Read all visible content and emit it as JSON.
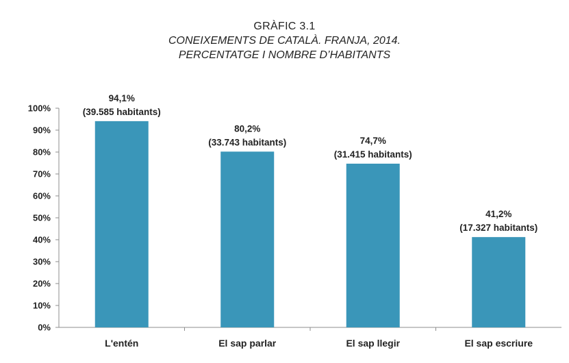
{
  "chart_data": {
    "type": "bar",
    "title": "GRÀFIC 3.1",
    "subtitle_lines": [
      "CONEIXEMENTS DE CATALÀ. FRANJA, 2014.",
      "PERCENTATGE I NOMBRE D’HABITANTS"
    ],
    "categories": [
      "L'entén",
      "El sap parlar",
      "El sap llegir",
      "El sap escriure"
    ],
    "values": [
      94.1,
      80.2,
      74.7,
      41.2
    ],
    "value_labels": [
      "94,1%",
      "80,2%",
      "74,7%",
      "41,2%"
    ],
    "count_labels": [
      "(39.585 habitants)",
      "(33.743 habitants)",
      "(31.415 habitants)",
      "(17.327 habitants)"
    ],
    "y_ticks": [
      0,
      10,
      20,
      30,
      40,
      50,
      60,
      70,
      80,
      90,
      100
    ],
    "y_tick_labels": [
      "0%",
      "10%",
      "20%",
      "30%",
      "40%",
      "50%",
      "60%",
      "70%",
      "80%",
      "90%",
      "100%"
    ],
    "ylim": [
      0,
      100
    ],
    "xlabel": "",
    "ylabel": "",
    "grid": false,
    "legend": "none",
    "bar_color": "#3a96b9",
    "axis_color": "#8c8c8c"
  }
}
